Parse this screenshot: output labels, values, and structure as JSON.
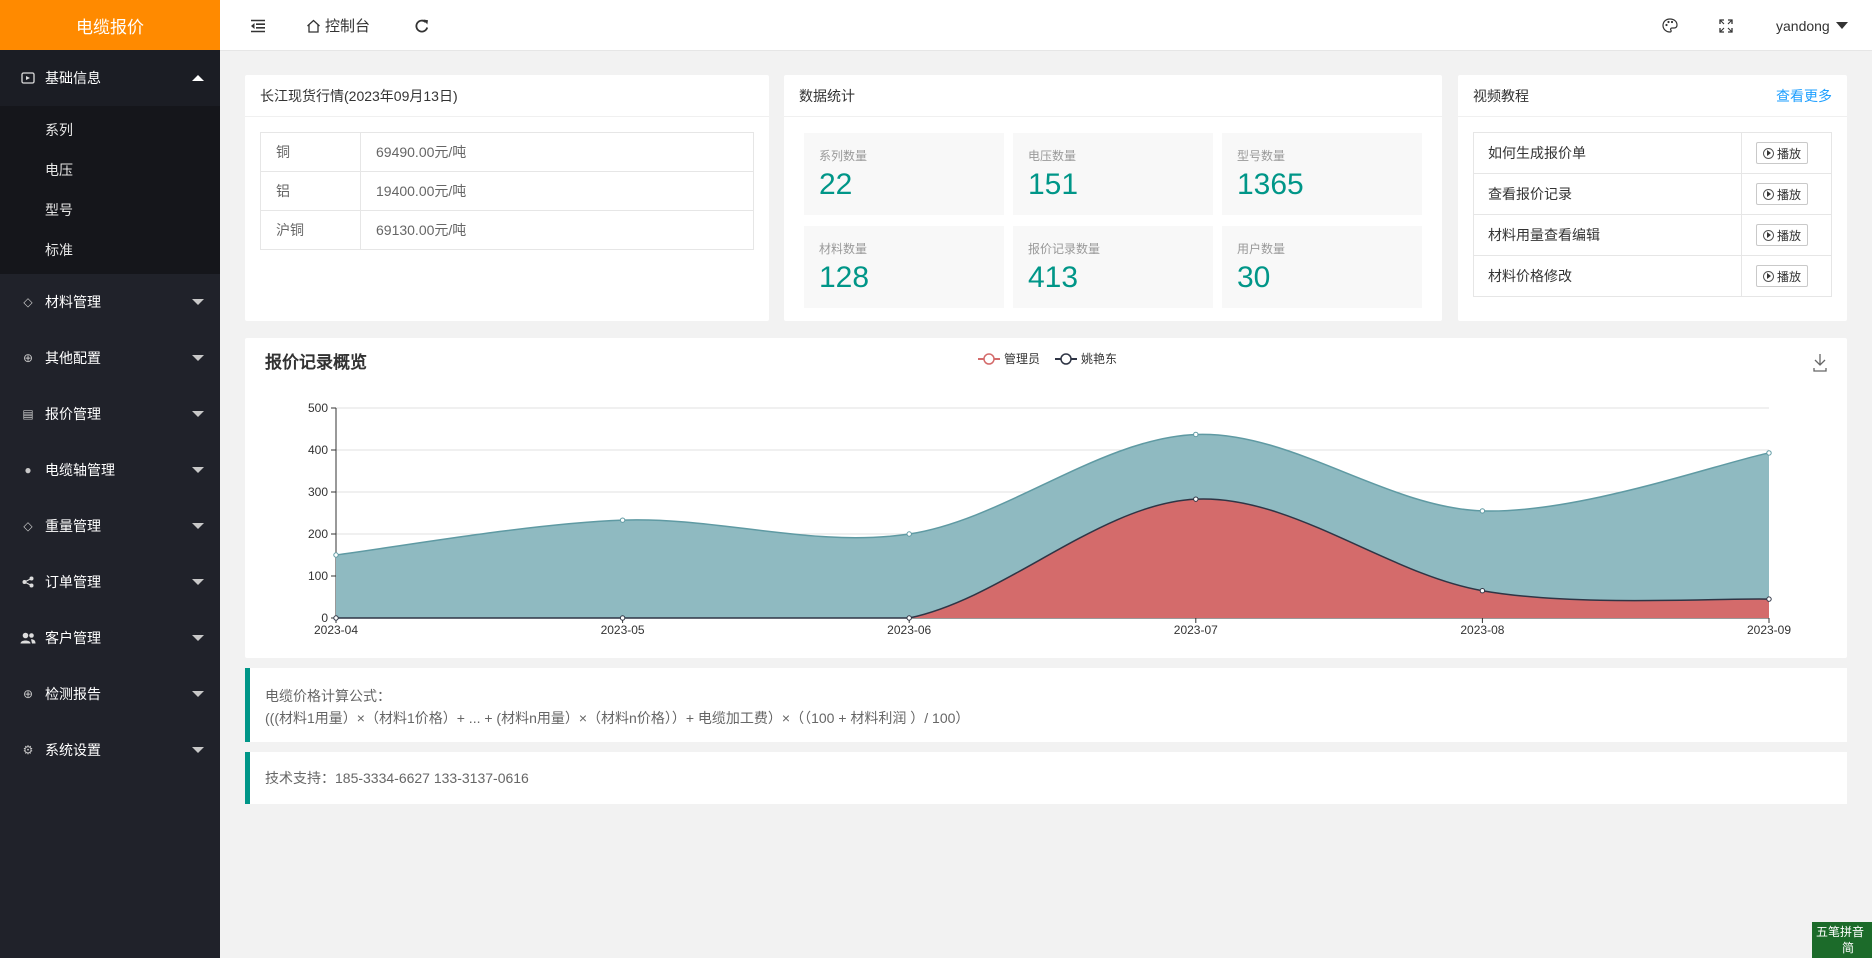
{
  "app": {
    "title": "电缆报价"
  },
  "sidebar": {
    "basic": {
      "label": "基础信息",
      "items": [
        "系列",
        "电压",
        "型号",
        "标准"
      ]
    },
    "groups": [
      "材料管理",
      "其他配置",
      "报价管理",
      "电缆轴管理",
      "重量管理",
      "订单管理",
      "客户管理",
      "检测报告",
      "系统设置"
    ]
  },
  "header": {
    "console_label": "控制台",
    "user": "yandong"
  },
  "price_card": {
    "title": "长江现货行情(2023年09月13日)",
    "rows": [
      {
        "name": "铜",
        "value": "69490.00元/吨"
      },
      {
        "name": "铝",
        "value": "19400.00元/吨"
      },
      {
        "name": "沪铜",
        "value": "69130.00元/吨"
      }
    ]
  },
  "stats_card": {
    "title": "数据统计",
    "items": [
      {
        "label": "系列数量",
        "value": "22"
      },
      {
        "label": "电压数量",
        "value": "151"
      },
      {
        "label": "型号数量",
        "value": "1365"
      },
      {
        "label": "材料数量",
        "value": "128"
      },
      {
        "label": "报价记录数量",
        "value": "413"
      },
      {
        "label": "用户数量",
        "value": "30"
      }
    ]
  },
  "video_card": {
    "title": "视频教程",
    "more": "查看更多",
    "play_label": "播放",
    "items": [
      "如何生成报价单",
      "查看报价记录",
      "材料用量查看编辑",
      "材料价格修改"
    ]
  },
  "chart_data": {
    "type": "area",
    "title": "报价记录概览",
    "categories": [
      "2023-04",
      "2023-05",
      "2023-06",
      "2023-07",
      "2023-08",
      "2023-09"
    ],
    "ylim": [
      0,
      500
    ],
    "yticks": [
      0,
      100,
      200,
      300,
      400,
      500
    ],
    "legend_position": "top-center",
    "grid": true,
    "series": [
      {
        "name": "管理员",
        "values": [
          0,
          0,
          0,
          283,
          65,
          45
        ],
        "color": "#d46b6b"
      },
      {
        "name": "姚艳东",
        "values": [
          150,
          233,
          200,
          437,
          255,
          393
        ],
        "color": "#8fbac1"
      }
    ]
  },
  "formula": {
    "line1": "电缆价格计算公式：",
    "line2": "(((材料1用量）×（材料1价格）+ ... + (材料n用量）×（材料n价格））+ 电缆加工费）×（（100 + 材料利润 ）/ 100）"
  },
  "support": {
    "text": "技术支持：185-3334-6627 133-3137-0616"
  },
  "ime": {
    "line1": "五笔拼音",
    "line2": "简"
  }
}
